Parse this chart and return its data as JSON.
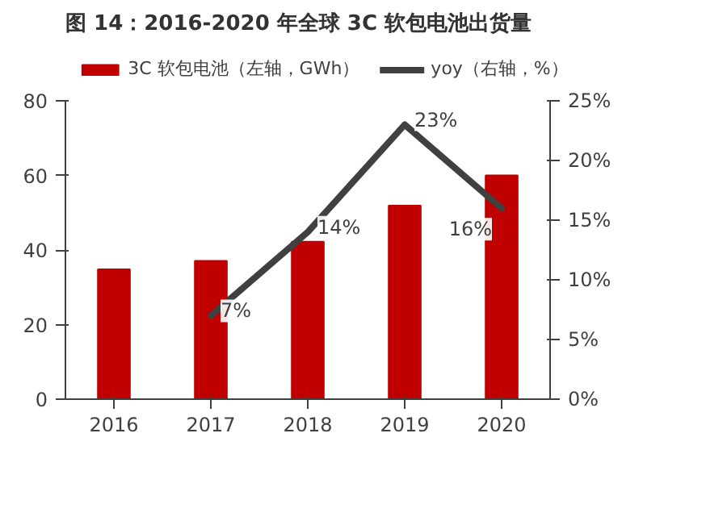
{
  "chart_data": {
    "type": "bar",
    "title": "图 14：2016-2020 年全球 3C 软包电池出货量",
    "categories": [
      "2016",
      "2017",
      "2018",
      "2019",
      "2020"
    ],
    "series": [
      {
        "name": "3C 软包电池（左轴，GWh）",
        "color": "#c00000",
        "values": [
          34.8,
          37.1,
          42.2,
          51.9,
          60.0
        ]
      },
      {
        "name": "yoy（右轴，%）",
        "type": "line",
        "axis": "y2",
        "color": "#404040",
        "values": [
          null,
          7,
          14,
          23,
          16
        ],
        "value_labels": [
          null,
          "7%",
          "14%",
          "23%",
          "16%"
        ]
      }
    ],
    "ylim": [
      0,
      80
    ],
    "yticks": [
      0,
      20,
      40,
      60,
      80
    ],
    "y2lim": [
      0,
      25
    ],
    "y2ticks": [
      {
        "value": 0,
        "label": "0%"
      },
      {
        "value": 5,
        "label": "5%"
      },
      {
        "value": 10,
        "label": "10%"
      },
      {
        "value": 15,
        "label": "15%"
      },
      {
        "value": 20,
        "label": "20%"
      },
      {
        "value": 25,
        "label": "25%"
      }
    ],
    "grid": false,
    "legend": "top",
    "line_style": "solid",
    "marker": "none"
  }
}
